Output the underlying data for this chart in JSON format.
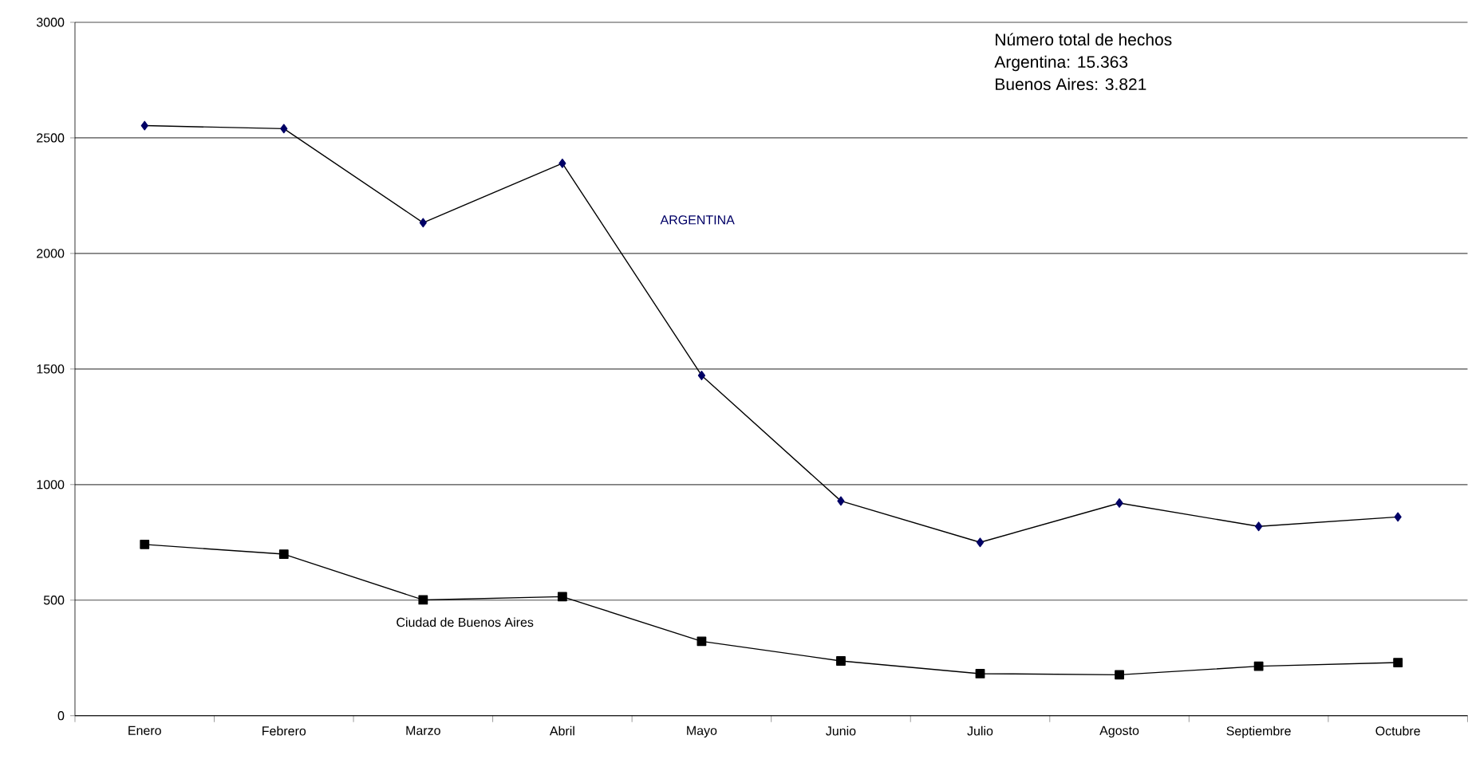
{
  "chart_data": {
    "type": "line",
    "categories": [
      "Enero",
      "Febrero",
      "Marzo",
      "Abril",
      "Mayo",
      "Junio",
      "Julio",
      "Agosto",
      "Septiembre",
      "Octubre"
    ],
    "series": [
      {
        "name": "ARGENTINA",
        "color": "#000066",
        "marker": "diamond",
        "values": [
          2553,
          2540,
          2133,
          2390,
          1472,
          929,
          750,
          920,
          819,
          860
        ]
      },
      {
        "name": "Ciudad de Buenos Aires",
        "color": "#000000",
        "marker": "square",
        "values": [
          741,
          699,
          501,
          515,
          322,
          237,
          182,
          177,
          214,
          230
        ]
      }
    ],
    "ylim": [
      0,
      3000
    ],
    "yticks": [
      0,
      500,
      1000,
      1500,
      2000,
      2500,
      3000
    ],
    "grid": "y",
    "line_style": "solid",
    "annotations": [
      "Número total de hechos",
      "Argentina: 15.363",
      "Buenos Aires: 3.821"
    ]
  }
}
